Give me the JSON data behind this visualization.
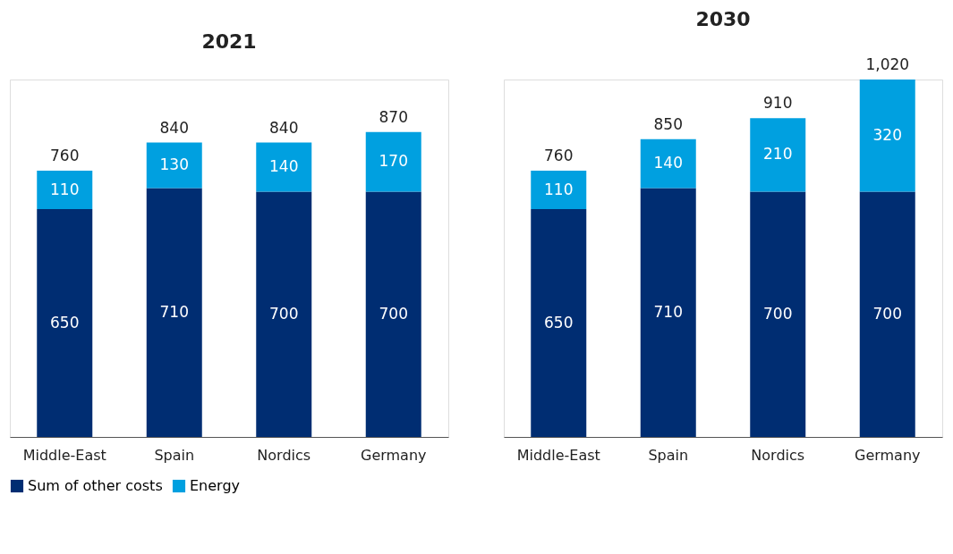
{
  "chart_data": [
    {
      "type": "bar",
      "title": "2021",
      "categories": [
        "Middle-East",
        "Spain",
        "Nordics",
        "Germany"
      ],
      "stacked": true,
      "data_labels": true,
      "legend": "bottom",
      "totals": [
        "760",
        "840",
        "840",
        "870"
      ],
      "series": [
        {
          "name": "Sum of other costs",
          "color": "#002d72",
          "values": [
            650,
            710,
            700,
            700
          ]
        },
        {
          "name": "Energy",
          "color": "#00a0e0",
          "values": [
            110,
            130,
            140,
            170
          ]
        }
      ]
    },
    {
      "type": "bar",
      "title": "2030",
      "categories": [
        "Middle-East",
        "Spain",
        "Nordics",
        "Germany"
      ],
      "stacked": true,
      "data_labels": true,
      "totals": [
        "760",
        "850",
        "910",
        "1,020"
      ],
      "series": [
        {
          "name": "Sum of other costs",
          "color": "#002d72",
          "values": [
            650,
            710,
            700,
            700
          ]
        },
        {
          "name": "Energy",
          "color": "#00a0e0",
          "values": [
            110,
            140,
            210,
            320
          ]
        }
      ]
    }
  ]
}
